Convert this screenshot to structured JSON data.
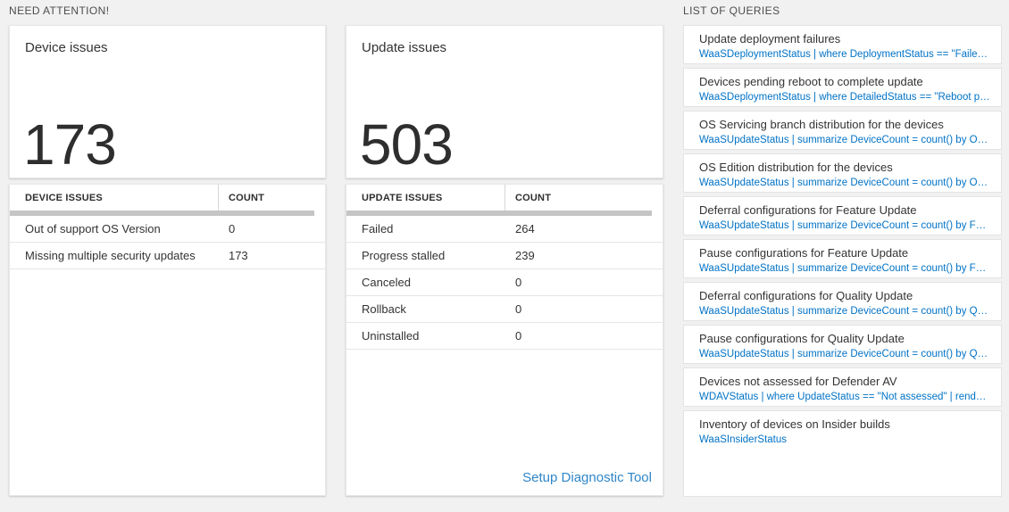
{
  "colors": {
    "page_bg": "#f1f1f1",
    "accent_blue": "#0072c6",
    "link_blue": "#2e86c8",
    "text_dark": "#333333",
    "scrollbar_gray": "#c5c5c5"
  },
  "need_attention": {
    "header": "NEED ATTENTION!",
    "device_tile": {
      "title": "Device issues",
      "value": "173"
    },
    "update_tile": {
      "title": "Update issues",
      "value": "503"
    },
    "device_table": {
      "col_issue": "DEVICE ISSUES",
      "col_count": "COUNT",
      "rows": [
        {
          "label": "Out of support OS Version",
          "count": "0"
        },
        {
          "label": "Missing multiple security updates",
          "count": "173"
        }
      ]
    },
    "update_table": {
      "col_issue": "UPDATE ISSUES",
      "col_count": "COUNT",
      "rows": [
        {
          "label": "Failed",
          "count": "264"
        },
        {
          "label": "Progress stalled",
          "count": "239"
        },
        {
          "label": "Canceled",
          "count": "0"
        },
        {
          "label": "Rollback",
          "count": "0"
        },
        {
          "label": "Uninstalled",
          "count": "0"
        }
      ],
      "footer_link": "Setup Diagnostic Tool"
    }
  },
  "queries": {
    "header": "LIST OF QUERIES",
    "items": [
      {
        "title": "Update deployment failures",
        "query": "WaaSDeploymentStatus | where DeploymentStatus == \"Failed\" |..."
      },
      {
        "title": "Devices pending reboot to complete update",
        "query": "WaaSDeploymentStatus | where DetailedStatus == \"Reboot pend..."
      },
      {
        "title": "OS Servicing branch distribution for the devices",
        "query": "WaaSUpdateStatus | summarize DeviceCount = count() by OSSer..."
      },
      {
        "title": "OS Edition distribution for the devices",
        "query": "WaaSUpdateStatus | summarize DeviceCount = count() by OSEdit..."
      },
      {
        "title": "Deferral configurations for Feature Update",
        "query": "WaaSUpdateStatus | summarize DeviceCount = count() by Featur..."
      },
      {
        "title": "Pause configurations for Feature Update",
        "query": "WaaSUpdateStatus | summarize DeviceCount = count() by Featur..."
      },
      {
        "title": "Deferral configurations for Quality Update",
        "query": "WaaSUpdateStatus | summarize DeviceCount = count() by Qualit..."
      },
      {
        "title": "Pause configurations for Quality Update",
        "query": "WaaSUpdateStatus | summarize DeviceCount = count() by Qualit..."
      },
      {
        "title": "Devices not assessed for Defender AV",
        "query": "WDAVStatus | where UpdateStatus == \"Not assessed\" | render ta..."
      },
      {
        "title": "Inventory of devices on Insider builds",
        "query": "WaaSInsiderStatus"
      }
    ]
  }
}
